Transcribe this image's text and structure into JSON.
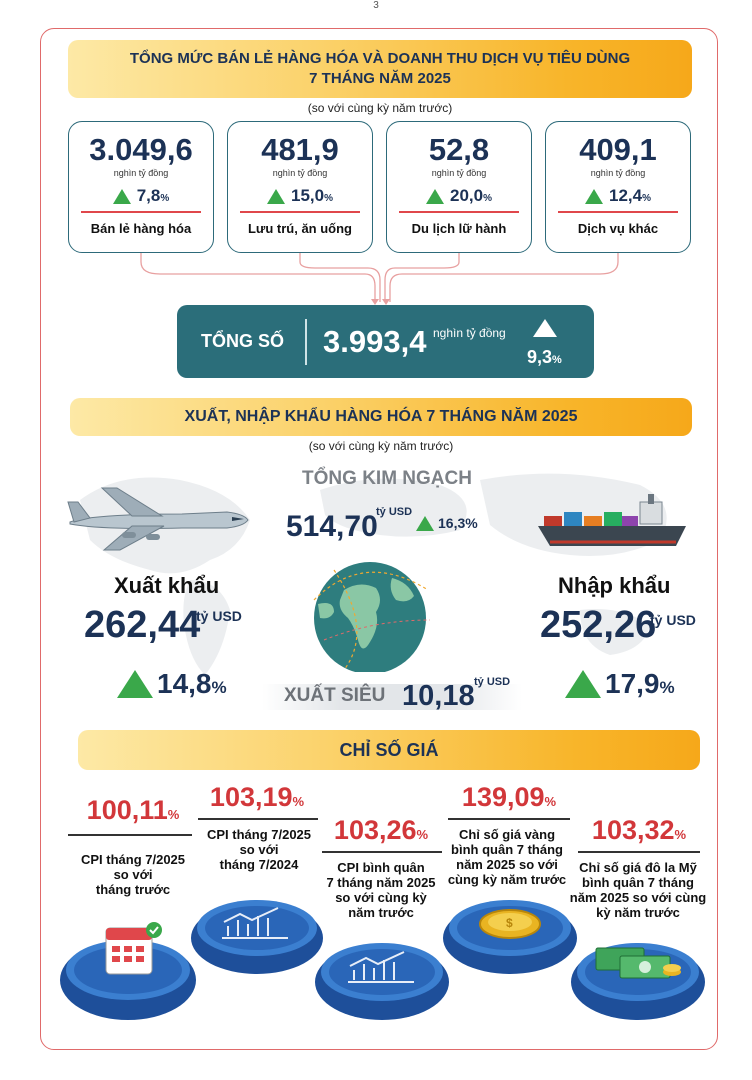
{
  "page_number": "3",
  "retail": {
    "title_line1": "TỔNG MỨC BÁN LẺ HÀNG HÓA VÀ DOANH THU DỊCH VỤ TIÊU DÙNG",
    "title_line2": "7 THÁNG NĂM 2025",
    "subtitle": "(so với cùng kỳ năm trước)",
    "cards": [
      {
        "value": "3.049,6",
        "unit": "nghìn tỷ đồng",
        "pct": "7,8",
        "pct_suffix": "%",
        "label": "Bán lẻ hàng hóa"
      },
      {
        "value": "481,9",
        "unit": "nghìn tỷ đồng",
        "pct": "15,0",
        "pct_suffix": "%",
        "label": "Lưu trú, ăn uống"
      },
      {
        "value": "52,8",
        "unit": "nghìn tỷ đồng",
        "pct": "20,0",
        "pct_suffix": "%",
        "label": "Du lịch lữ hành"
      },
      {
        "value": "409,1",
        "unit": "nghìn tỷ đồng",
        "pct": "12,4",
        "pct_suffix": "%",
        "label": "Dịch vụ khác"
      }
    ],
    "total": {
      "label": "TỔNG SỐ",
      "value": "3.993,4",
      "unit": "nghìn tỷ đồng",
      "pct": "9,3",
      "pct_suffix": "%"
    }
  },
  "trade": {
    "title": "XUẤT, NHẬP KHẨU HÀNG HÓA 7 THÁNG NĂM 2025",
    "subtitle": "(so với cùng kỳ năm trước)",
    "turnover": {
      "label": "TỔNG KIM NGẠCH",
      "value": "514,70",
      "unit": "tỷ USD",
      "pct": "16,3%"
    },
    "export": {
      "label": "Xuất khẩu",
      "value": "262,44",
      "unit": "tỷ USD",
      "pct": "14,8",
      "pct_suffix": "%"
    },
    "import": {
      "label": "Nhập khẩu",
      "value": "252,26",
      "unit": "tỷ USD",
      "pct": "17,9",
      "pct_suffix": "%"
    },
    "surplus": {
      "label": "XUẤT SIÊU",
      "value": "10,18",
      "unit": "tỷ USD"
    }
  },
  "prices": {
    "title": "CHỈ SỐ GIÁ",
    "items": [
      {
        "value": "100,11",
        "suffix": "%",
        "label_lines": [
          "CPI tháng 7/2025",
          "so với",
          "tháng trước"
        ]
      },
      {
        "value": "103,19",
        "suffix": "%",
        "label_lines": [
          "CPI tháng 7/2025",
          "so với",
          "tháng 7/2024"
        ]
      },
      {
        "value": "103,26",
        "suffix": "%",
        "label_lines": [
          "CPI bình quân",
          "7 tháng năm 2025",
          "so với cùng kỳ",
          "năm trước"
        ]
      },
      {
        "value": "139,09",
        "suffix": "%",
        "label_lines": [
          "Chỉ số giá vàng",
          "bình quân 7 tháng",
          "năm 2025 so với",
          "cùng kỳ năm trước"
        ]
      },
      {
        "value": "103,32",
        "suffix": "%",
        "label_lines": [
          "Chỉ số giá đô la Mỹ",
          "bình quân 7 tháng",
          "năm 2025 so với cùng",
          "kỳ năm trước"
        ]
      }
    ]
  },
  "colors": {
    "accent_teal": "#2b6e7a",
    "navy": "#1c3256",
    "green_up": "#3aa84a",
    "red_value": "#d2373a",
    "banner_gold": "#f8b52a"
  }
}
